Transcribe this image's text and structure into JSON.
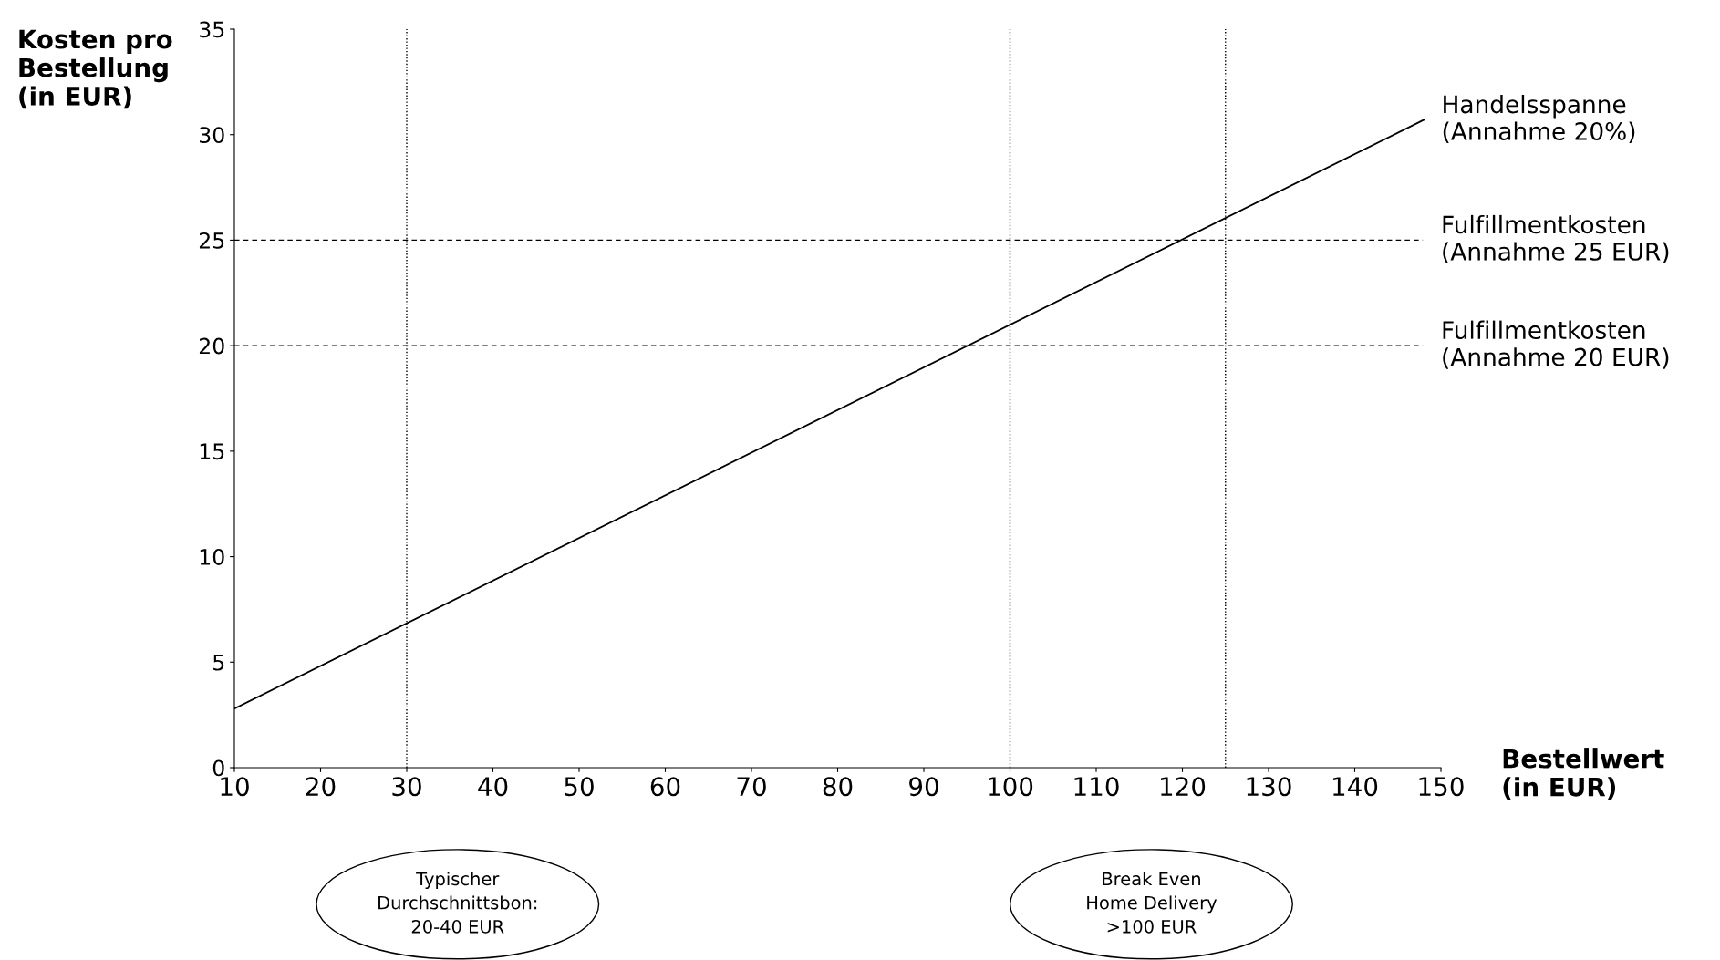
{
  "chart_data": {
    "type": "line",
    "xlabel": "Bestellwert\n(in EUR)",
    "ylabel": "Kosten pro\nBestellung\n(in EUR)",
    "xlim": [
      10,
      150
    ],
    "xticks": [
      10,
      20,
      30,
      40,
      50,
      60,
      70,
      80,
      90,
      100,
      110,
      120,
      130,
      140,
      150
    ],
    "ylim": [
      0,
      35
    ],
    "yticks": [
      0,
      5,
      10,
      15,
      20,
      25,
      30,
      35
    ],
    "grid": false,
    "legend": false,
    "marker": "none",
    "line_style": "solid",
    "series": [
      {
        "name": "Handelsspanne\n(Annahme 20%)",
        "color": "#000000",
        "x": [
          10,
          148
        ],
        "values": [
          2.8,
          30.7
        ]
      }
    ],
    "ref_lines": [
      {
        "axis": "y",
        "value": 25,
        "label": "Fulfillmentkosten\n(Annahme 25 EUR)",
        "color": "#000000",
        "line_style": "dashed"
      },
      {
        "axis": "y",
        "value": 20,
        "label": "Fulfillmentkosten\n(Annahme 20 EUR)",
        "color": "#000000",
        "line_style": "dashed"
      },
      {
        "axis": "x",
        "value": 30,
        "color": "#000000",
        "line_style": "dotted"
      },
      {
        "axis": "x",
        "value": 100,
        "color": "#000000",
        "line_style": "dotted"
      },
      {
        "axis": "x",
        "value": 125,
        "color": "#000000",
        "line_style": "dotted"
      }
    ],
    "annotations": [
      "Typischer\nDurchschnittsbon:\n20-40 EUR",
      "Break Even\nHome Delivery\n>100 EUR"
    ]
  }
}
